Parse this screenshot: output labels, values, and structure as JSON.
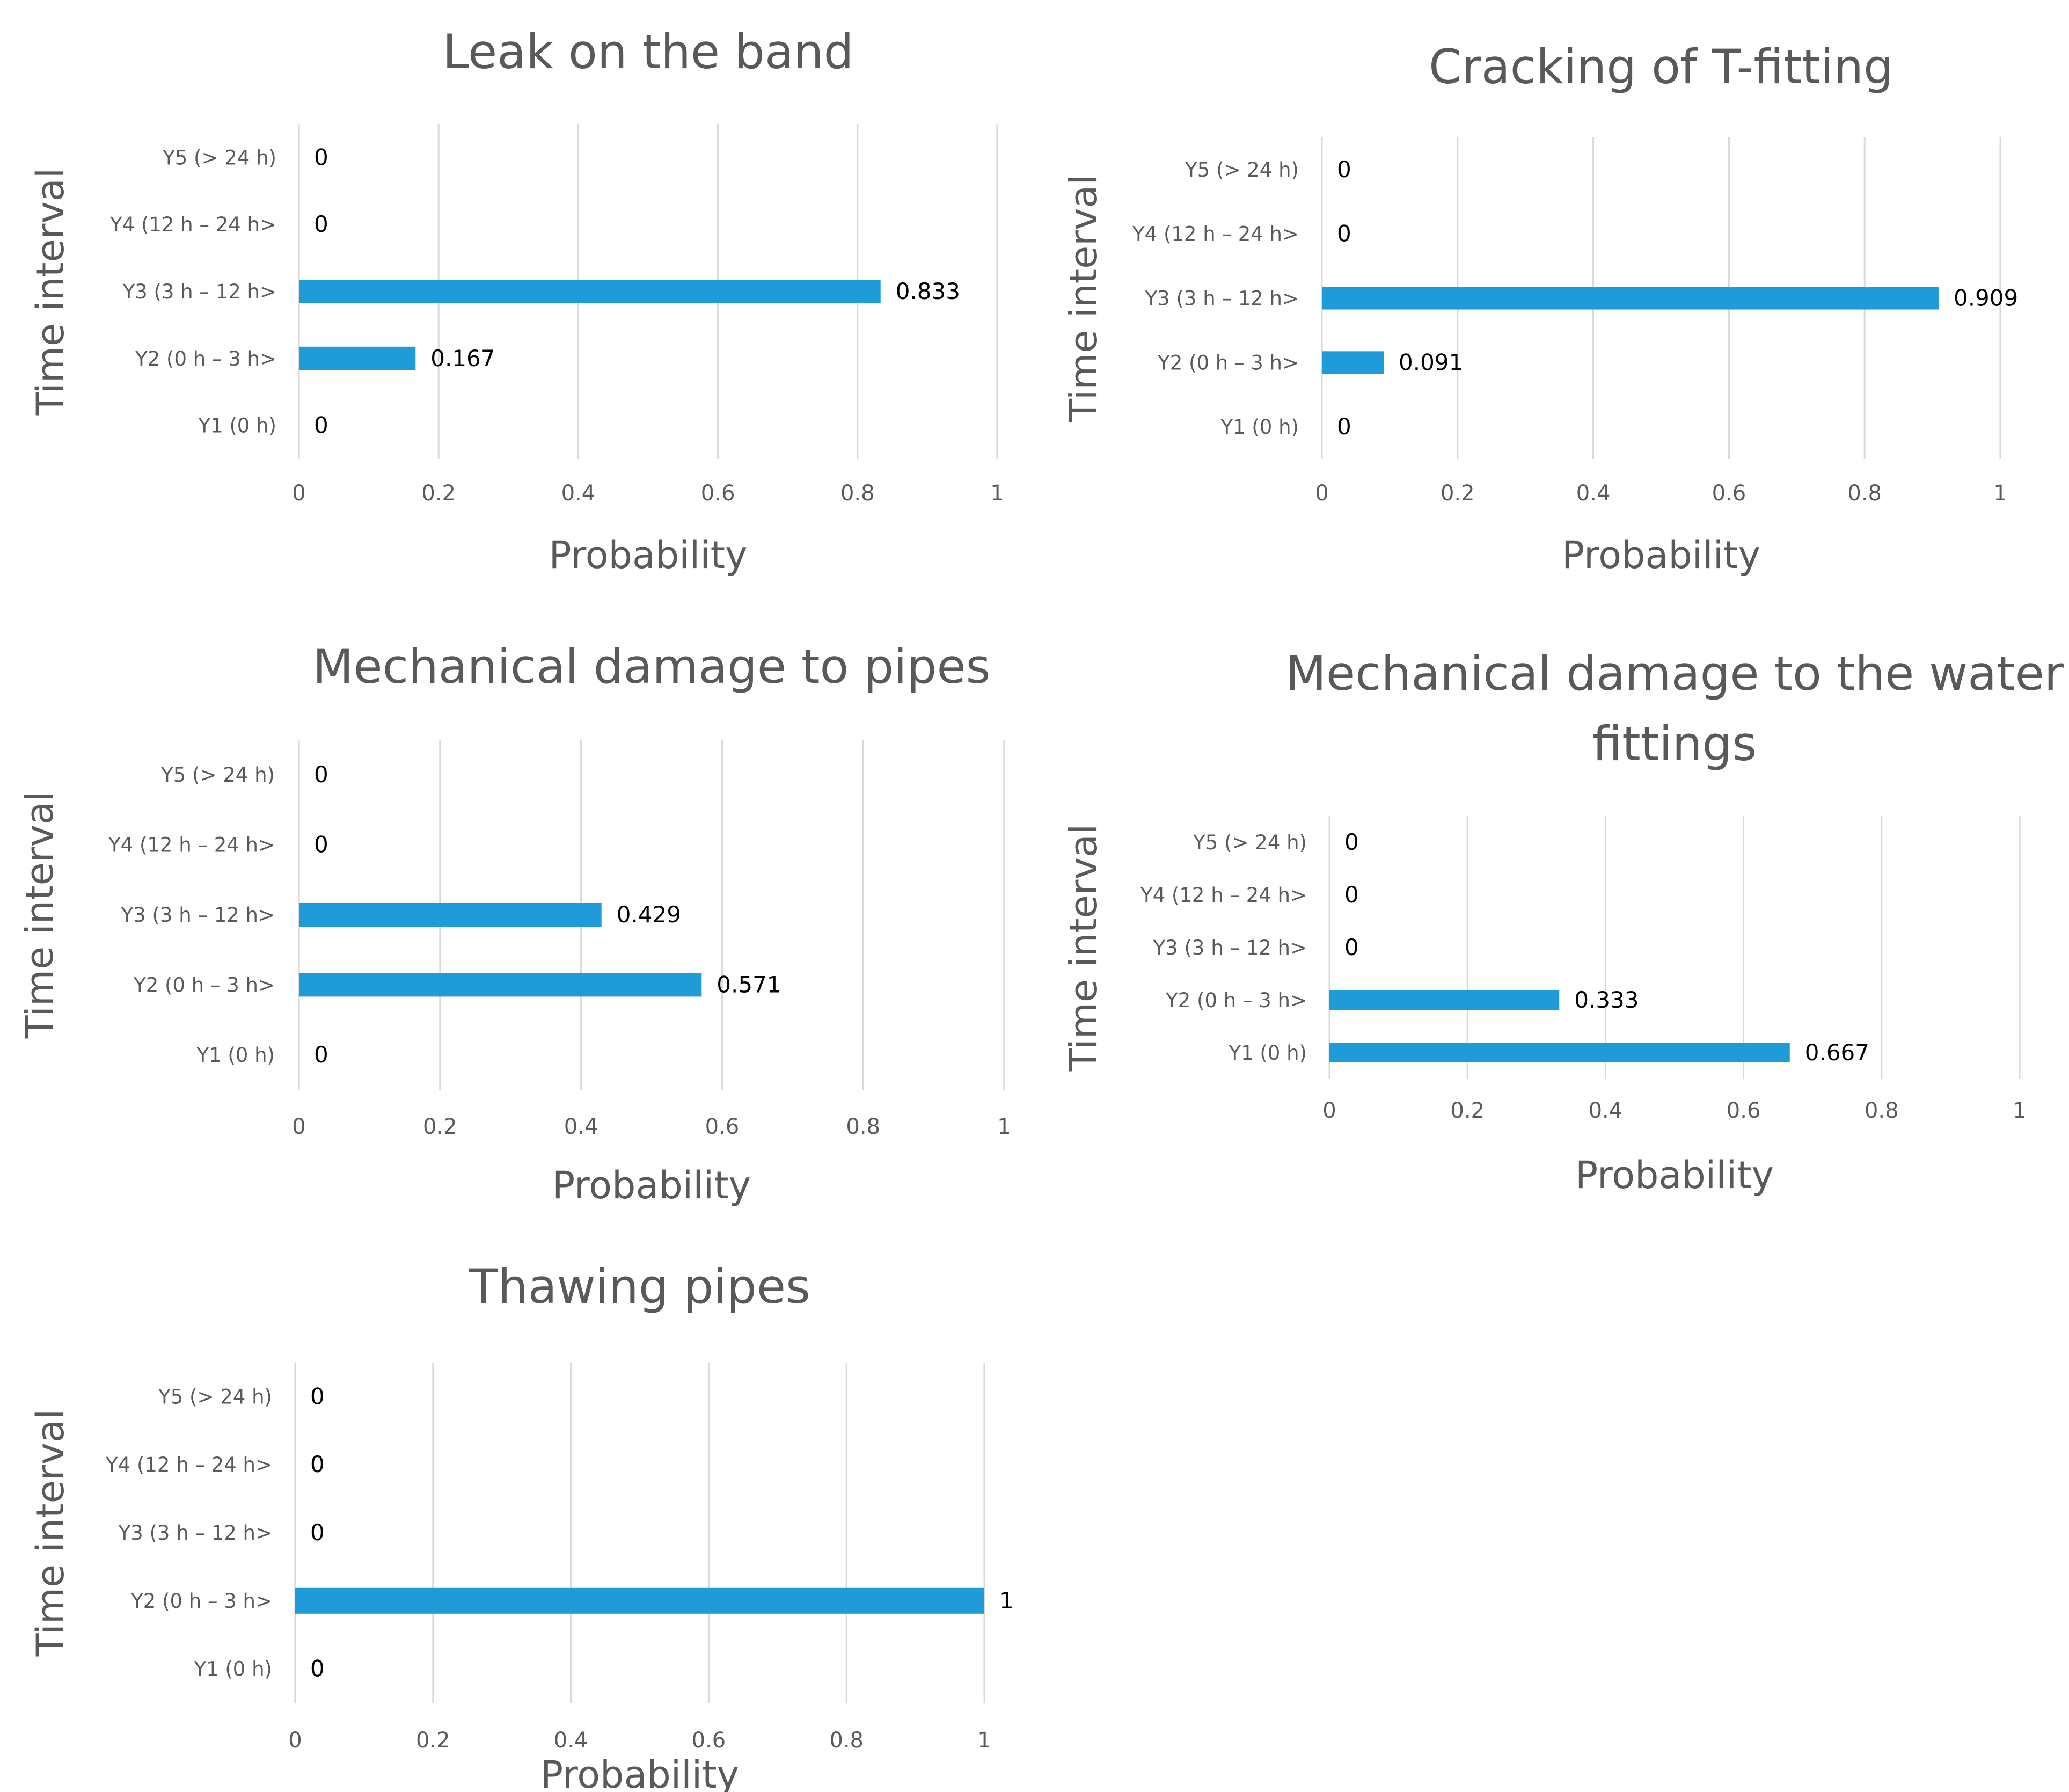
{
  "colors": {
    "bar": "#1f9bd7",
    "text": "#595959",
    "grid": "#d9d9d9",
    "data_label": "#000000"
  },
  "chart_data": [
    {
      "type": "bar",
      "orientation": "horizontal",
      "title": "Leak on the band",
      "xlabel": "Probability",
      "ylabel": "Time interval",
      "categories": [
        "Y1 (0 h)",
        "Y2 (0 h –  3 h>",
        "Y3 (3 h – 12 h>",
        "Y4  (12 h – 24 h>",
        "Y5  (> 24 h)"
      ],
      "values": [
        0,
        0.167,
        0.833,
        0,
        0
      ],
      "xlim": [
        0,
        1
      ],
      "xticks": [
        0,
        0.2,
        0.4,
        0.6,
        0.8,
        1
      ],
      "xtick_labels": [
        "0",
        "0.2",
        "0.4",
        "0.6",
        "0.8",
        "1"
      ],
      "data_labels": [
        "0",
        "0.167",
        "0.833",
        "0",
        "0"
      ],
      "grid": true
    },
    {
      "type": "bar",
      "orientation": "horizontal",
      "title": "Cracking of T-fitting",
      "xlabel": "Probability",
      "ylabel": "Time interval",
      "categories": [
        "Y1 (0 h)",
        "Y2 (0 h –  3 h>",
        "Y3 (3 h – 12 h>",
        "Y4  (12 h – 24 h>",
        "Y5  (> 24 h)"
      ],
      "values": [
        0,
        0.091,
        0.909,
        0,
        0
      ],
      "xlim": [
        0,
        1
      ],
      "xticks": [
        0,
        0.2,
        0.4,
        0.6,
        0.8,
        1
      ],
      "xtick_labels": [
        "0",
        "0.2",
        "0.4",
        "0.6",
        "0.8",
        "1"
      ],
      "data_labels": [
        "0",
        "0.091",
        "0.909",
        "0",
        "0"
      ],
      "grid": true
    },
    {
      "type": "bar",
      "orientation": "horizontal",
      "title": "Mechanical damage to pipes",
      "xlabel": "Probability",
      "ylabel": "Time interval",
      "categories": [
        "Y1 (0 h)",
        "Y2 (0 h –  3 h>",
        "Y3 (3 h – 12 h>",
        "Y4  (12 h – 24 h>",
        "Y5  (> 24 h)"
      ],
      "values": [
        0,
        0.571,
        0.429,
        0,
        0
      ],
      "xlim": [
        0,
        1
      ],
      "xticks": [
        0,
        0.2,
        0.4,
        0.6,
        0.8,
        1
      ],
      "xtick_labels": [
        "0",
        "0.2",
        "0.4",
        "0.6",
        "0.8",
        "1"
      ],
      "data_labels": [
        "0",
        "0.571",
        "0.429",
        "0",
        "0"
      ],
      "grid": true
    },
    {
      "type": "bar",
      "orientation": "horizontal",
      "title": "Mechanical damage to the water fittings",
      "title_lines": [
        "Mechanical damage to the water",
        "fittings"
      ],
      "xlabel": "Probability",
      "ylabel": "Time interval",
      "categories": [
        "Y1 (0 h)",
        "Y2 (0 h –  3 h>",
        "Y3 (3 h – 12 h>",
        "Y4  (12 h – 24 h>",
        "Y5  (> 24 h)"
      ],
      "values": [
        0.667,
        0.333,
        0,
        0,
        0
      ],
      "xlim": [
        0,
        1
      ],
      "xticks": [
        0,
        0.2,
        0.4,
        0.6,
        0.8,
        1
      ],
      "xtick_labels": [
        "0",
        "0.2",
        "0.4",
        "0.6",
        "0.8",
        "1"
      ],
      "data_labels": [
        "0.667",
        "0.333",
        "0",
        "0",
        "0"
      ],
      "grid": true
    },
    {
      "type": "bar",
      "orientation": "horizontal",
      "title": "Thawing pipes",
      "xlabel": "Probability",
      "ylabel": "Time interval",
      "categories": [
        "Y1 (0 h)",
        "Y2 (0 h –  3 h>",
        "Y3 (3 h – 12 h>",
        "Y4  (12 h – 24 h>",
        "Y5  (> 24 h)"
      ],
      "values": [
        0,
        1,
        0,
        0,
        0
      ],
      "xlim": [
        0,
        1
      ],
      "xticks": [
        0,
        0.2,
        0.4,
        0.6,
        0.8,
        1
      ],
      "xtick_labels": [
        "0",
        "0.2",
        "0.4",
        "0.6",
        "0.8",
        "1"
      ],
      "data_labels": [
        "0",
        "1",
        "0",
        "0",
        "0"
      ],
      "grid": true
    }
  ]
}
